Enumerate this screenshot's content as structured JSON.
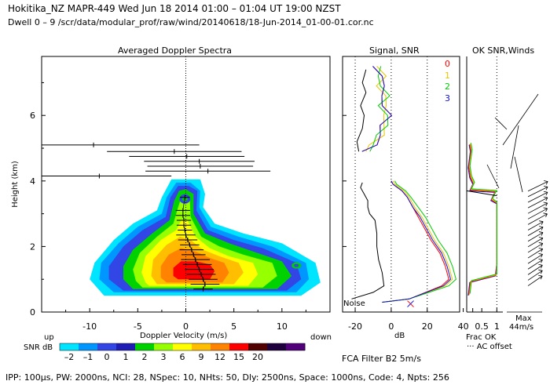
{
  "header": {
    "title_line": "Hokitika_NZ   MAPR-449  Wed Jun 18 2014 01:00 – 01:04 UT 19:00 NZST",
    "path_line": "Dwell   0 –  9    /scr/data/modular_prof/raw/wind/20140618/18-Jun-2014_01-00-01.cor.nc"
  },
  "footer": {
    "params": "IPP: 100µs,  PW: 2000ns,  NCI:  28,  NSpec: 10, NHts: 50,  Dly: 2500ns,  Space: 1000ns,  Code: 4,  Npts: 256",
    "fca": "FCA Filter B2   5m/s"
  },
  "colors": {
    "snr_palette": [
      "#00e5ff",
      "#0096ff",
      "#3246e6",
      "#1e1eb4",
      "#00d200",
      "#96ff00",
      "#ffff00",
      "#ffbe00",
      "#ff8200",
      "#ff0000",
      "#500000",
      "#1e003c",
      "#500078"
    ],
    "ch0": "#ff0000",
    "ch1": "#e8c400",
    "ch2": "#00cc00",
    "ch3": "#1010cc"
  },
  "chart_data": [
    {
      "type": "heatmap",
      "title": "Averaged Doppler Spectra",
      "xlabel": "Doppler Velocity (m/s)",
      "ylabel": "Height (km)",
      "xlim": [
        -15,
        15
      ],
      "ylim": [
        0,
        7.8
      ],
      "xticks": [
        -10,
        -5,
        0,
        5,
        10
      ],
      "yticks": [
        0,
        2,
        4,
        6
      ],
      "x_left_label": "up",
      "x_right_label": "down",
      "colorbar": {
        "label": "SNR dB",
        "ticks": [
          "–2",
          "–1",
          "0",
          "1",
          "2",
          "3",
          "6",
          "9",
          "12",
          "15",
          "20"
        ]
      },
      "velocity_profile": [
        {
          "h": 0.7,
          "v": 1.8,
          "w": 2.0
        },
        {
          "h": 0.85,
          "v": 2.0,
          "w": 3.0
        },
        {
          "h": 1.0,
          "v": 1.8,
          "w": 3.0
        },
        {
          "h": 1.15,
          "v": 1.6,
          "w": 3.0
        },
        {
          "h": 1.3,
          "v": 1.4,
          "w": 3.0
        },
        {
          "h": 1.45,
          "v": 1.2,
          "w": 3.0
        },
        {
          "h": 1.6,
          "v": 1.0,
          "w": 3.0
        },
        {
          "h": 1.75,
          "v": 0.8,
          "w": 2.5
        },
        {
          "h": 1.9,
          "v": 0.6,
          "w": 2.5
        },
        {
          "h": 2.05,
          "v": 0.4,
          "w": 2.0
        },
        {
          "h": 2.2,
          "v": 0.2,
          "w": 2.0
        },
        {
          "h": 2.35,
          "v": 0.0,
          "w": 2.0
        },
        {
          "h": 2.5,
          "v": -0.1,
          "w": 1.5
        },
        {
          "h": 2.65,
          "v": -0.2,
          "w": 1.5
        },
        {
          "h": 2.8,
          "v": -0.2,
          "w": 1.5
        },
        {
          "h": 2.95,
          "v": -0.3,
          "w": 1.5
        },
        {
          "h": 3.1,
          "v": -0.3,
          "w": 1.5
        },
        {
          "h": 3.5,
          "v": -0.1,
          "w": 1.0
        }
      ],
      "upper_segments": [
        {
          "h": 4.15,
          "v": -9.0,
          "w": 15.0
        },
        {
          "h": 4.3,
          "v": 2.3,
          "w": 13.0
        },
        {
          "h": 4.45,
          "v": 1.5,
          "w": 11.0
        },
        {
          "h": 4.6,
          "v": 1.4,
          "w": 11.5
        },
        {
          "h": 4.75,
          "v": 0.1,
          "w": 12.0
        },
        {
          "h": 4.9,
          "v": -1.2,
          "w": 14.0
        },
        {
          "h": 5.1,
          "v": -9.6,
          "w": 22.0
        }
      ]
    },
    {
      "type": "line",
      "title": "Signal, SNR",
      "xlabel": "dB",
      "xticks": [
        -20,
        0,
        20,
        40
      ],
      "xlim": [
        -27,
        38
      ],
      "ylim": [
        0,
        7.8
      ],
      "annotations": [
        "Noise"
      ],
      "legend": [
        "0",
        "1",
        "2",
        "3"
      ],
      "series": [
        {
          "name": "signal",
          "points": [
            [
              -22,
              0.4
            ],
            [
              -10,
              0.6
            ],
            [
              -4,
              0.8
            ],
            [
              -5,
              1.2
            ],
            [
              -7,
              1.6
            ],
            [
              -8,
              2.0
            ],
            [
              -8,
              2.4
            ],
            [
              -8.5,
              2.6
            ],
            [
              -9,
              2.8
            ],
            [
              -12,
              3.0
            ],
            [
              -13,
              3.2
            ],
            [
              -13,
              3.4
            ],
            [
              -15,
              3.6
            ],
            [
              -17,
              3.8
            ],
            [
              -16,
              3.95
            ]
          ]
        },
        {
          "name": "signal-upper",
          "points": [
            [
              -18,
              4.9
            ],
            [
              -19,
              5.2
            ],
            [
              -16,
              5.6
            ],
            [
              -15,
              6.0
            ],
            [
              -17,
              6.3
            ],
            [
              -14,
              6.7
            ],
            [
              -16,
              7.0
            ],
            [
              -14,
              7.4
            ]
          ]
        },
        {
          "name": "0",
          "points": [
            [
              -5,
              0.3
            ],
            [
              10,
              0.4
            ],
            [
              28,
              0.8
            ],
            [
              32,
              1.0
            ],
            [
              30,
              1.4
            ],
            [
              27,
              1.8
            ],
            [
              22,
              2.2
            ],
            [
              18,
              2.6
            ],
            [
              15,
              2.9
            ],
            [
              12,
              3.2
            ],
            [
              9,
              3.5
            ],
            [
              6,
              3.7
            ],
            [
              1,
              3.9
            ],
            [
              0,
              4.0
            ]
          ]
        },
        {
          "name": "1",
          "points": [
            [
              -5,
              0.3
            ],
            [
              10,
              0.4
            ],
            [
              30,
              0.8
            ],
            [
              34,
              1.0
            ],
            [
              32,
              1.4
            ],
            [
              29,
              1.8
            ],
            [
              24,
              2.2
            ],
            [
              20,
              2.6
            ],
            [
              17,
              2.9
            ],
            [
              13,
              3.2
            ],
            [
              10,
              3.5
            ],
            [
              7,
              3.7
            ],
            [
              2,
              3.9
            ],
            [
              1,
              4.0
            ]
          ]
        },
        {
          "name": "2",
          "points": [
            [
              -5,
              0.3
            ],
            [
              10,
              0.4
            ],
            [
              32,
              0.8
            ],
            [
              36,
              1.0
            ],
            [
              34,
              1.4
            ],
            [
              31,
              1.8
            ],
            [
              26,
              2.2
            ],
            [
              22,
              2.6
            ],
            [
              19,
              2.9
            ],
            [
              15,
              3.2
            ],
            [
              11,
              3.5
            ],
            [
              8,
              3.7
            ],
            [
              3,
              3.9
            ],
            [
              2,
              4.0
            ]
          ]
        },
        {
          "name": "3",
          "points": [
            [
              -5,
              0.3
            ],
            [
              10,
              0.4
            ],
            [
              29,
              0.8
            ],
            [
              33,
              1.0
            ],
            [
              31,
              1.4
            ],
            [
              28,
              1.8
            ],
            [
              23,
              2.2
            ],
            [
              19,
              2.6
            ],
            [
              16,
              2.9
            ],
            [
              12,
              3.2
            ],
            [
              9,
              3.5
            ],
            [
              6,
              3.7
            ],
            [
              1,
              3.9
            ],
            [
              0,
              4.0
            ]
          ]
        }
      ]
    },
    {
      "type": "line",
      "title": "OK SNR,Winds",
      "xticks": [
        "0.5",
        "1"
      ],
      "xlim": [
        0,
        1.2
      ],
      "legend": [
        "Frac OK",
        "··· AC offset"
      ],
      "wind_scale_label": "Max",
      "wind_scale_value": "44m/s"
    }
  ]
}
